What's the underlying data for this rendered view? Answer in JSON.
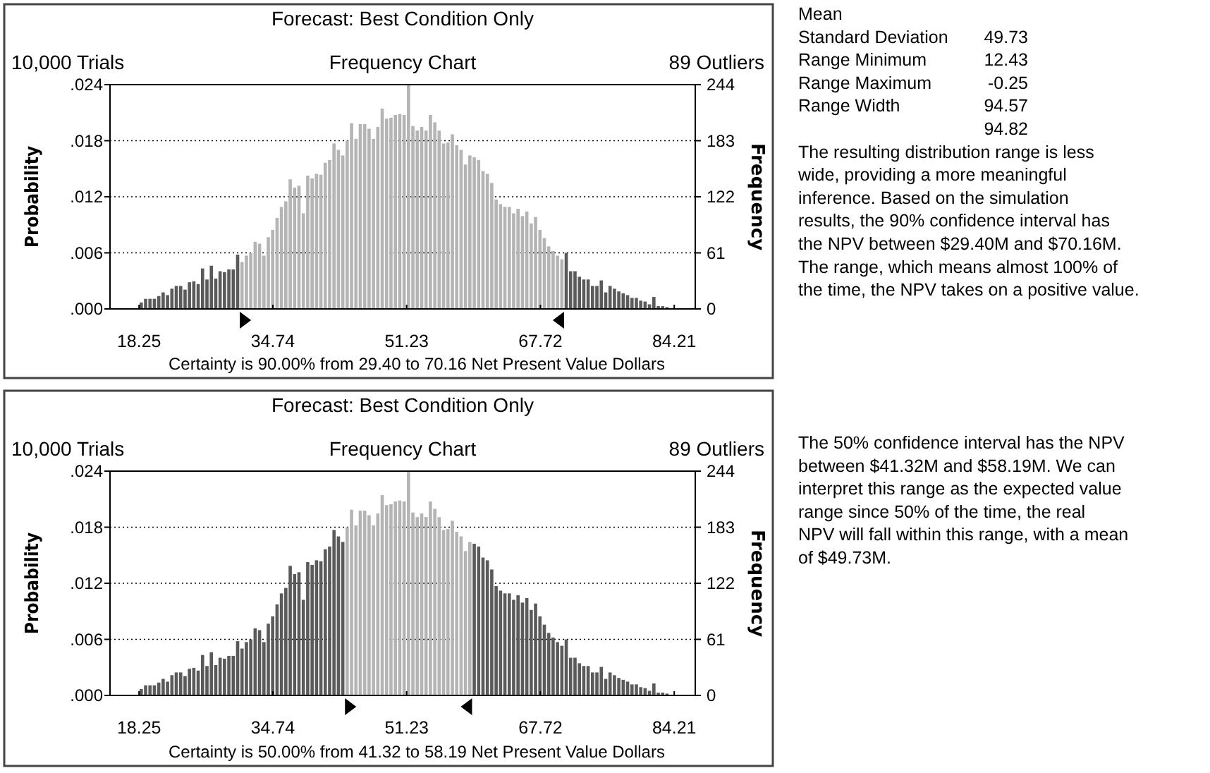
{
  "chart_data": [
    {
      "type": "histogram",
      "title": "Forecast: Best Condition Only",
      "subtitle": "Frequency Chart",
      "ylabel": "Probability",
      "y2label": "Frequency",
      "annotations": [
        "10,000 Trials",
        "89 Outliers",
        "Certainty is 90.00% from 29.40 to 70.16 Net Present Value Dollars"
      ],
      "xlim": [
        14.67,
        86.8
      ],
      "xticks": [
        18.25,
        34.74,
        51.23,
        67.72,
        84.21
      ],
      "ylim": [
        0,
        0.0244
      ],
      "yticks": [
        {
          "value": 0,
          "label": ".000"
        },
        {
          "value": 0.0061,
          "label": ".006"
        },
        {
          "value": 0.0122,
          "label": ".012"
        },
        {
          "value": 0.0183,
          "label": ".018"
        },
        {
          "value": 0.0244,
          "label": ".024"
        }
      ],
      "y2lim": [
        0,
        244
      ],
      "y2ticks": [
        0,
        61,
        122,
        183,
        244
      ],
      "grid": "y",
      "bins": [
        18.25,
        18.79,
        19.33,
        19.87,
        20.41,
        20.95,
        21.49,
        22.03,
        22.57,
        23.11,
        23.65,
        24.19,
        24.73,
        25.27,
        25.81,
        26.35,
        26.89,
        27.43,
        27.97,
        28.51,
        29.05,
        29.59,
        30.13,
        30.67,
        31.21,
        31.75,
        32.29,
        32.83,
        33.37,
        33.91,
        34.45,
        34.99,
        35.53,
        36.07,
        36.61,
        37.15,
        37.69,
        38.23,
        38.77,
        39.31,
        39.85,
        40.39,
        40.93,
        41.47,
        42.01,
        42.55,
        43.09,
        43.63,
        44.17,
        44.71,
        45.25,
        45.79,
        46.33,
        46.87,
        47.41,
        47.95,
        48.49,
        49.03,
        49.57,
        50.11,
        50.65,
        51.19,
        51.73,
        52.27,
        52.81,
        53.35,
        53.89,
        54.43,
        54.97,
        55.51,
        56.05,
        56.59,
        57.13,
        57.67,
        58.21,
        58.75,
        59.29,
        59.83,
        60.37,
        60.91,
        61.45,
        61.99,
        62.53,
        63.07,
        63.61,
        64.15,
        64.69,
        65.23,
        65.77,
        66.31,
        66.85,
        67.39,
        67.93,
        68.47,
        69.01,
        69.55,
        70.09,
        70.63,
        71.17,
        71.71,
        72.25,
        72.79,
        73.33,
        73.87,
        74.41,
        74.95,
        75.49,
        76.03,
        76.57,
        77.11,
        77.65,
        78.19,
        78.73,
        79.27,
        79.81,
        80.35,
        80.89,
        81.43,
        81.97,
        82.51,
        83.05,
        83.59
      ],
      "series": [
        {
          "axis": "y2",
          "values": [
            7,
            11,
            11,
            11,
            14,
            18,
            15,
            22,
            25,
            25,
            21,
            29,
            30,
            27,
            44,
            32,
            47,
            33,
            41,
            40,
            43,
            43,
            59,
            51,
            58,
            61,
            73,
            71,
            58,
            78,
            86,
            99,
            111,
            117,
            141,
            132,
            134,
            104,
            145,
            142,
            147,
            146,
            159,
            162,
            180,
            173,
            167,
            183,
            202,
            185,
            201,
            201,
            196,
            185,
            198,
            218,
            207,
            208,
            211,
            212,
            211,
            244,
            199,
            194,
            198,
            194,
            211,
            203,
            194,
            180,
            181,
            190,
            178,
            173,
            157,
            167,
            165,
            162,
            150,
            147,
            137,
            119,
            114,
            111,
            111,
            104,
            109,
            101,
            106,
            93,
            100,
            86,
            77,
            68,
            63,
            58,
            54,
            61,
            41,
            41,
            35,
            32,
            32,
            25,
            25,
            31,
            18,
            25,
            22,
            19,
            17,
            15,
            12,
            12,
            9,
            8,
            5,
            13,
            3,
            3,
            2
          ],
          "colors": [
            "#5a5a5a",
            "#5a5a5a",
            "#5a5a5a",
            "#5a5a5a",
            "#5a5a5a",
            "#5a5a5a",
            "#5a5a5a",
            "#5a5a5a",
            "#5a5a5a",
            "#5a5a5a",
            "#5a5a5a",
            "#5a5a5a",
            "#5a5a5a",
            "#5a5a5a",
            "#5a5a5a",
            "#5a5a5a",
            "#5a5a5a",
            "#5a5a5a",
            "#5a5a5a",
            "#5a5a5a",
            "#5a5a5a",
            "#5a5a5a",
            "#5a5a5a",
            "#b4b4b4",
            "#b4b4b4",
            "#b4b4b4",
            "#b4b4b4",
            "#b4b4b4",
            "#b4b4b4",
            "#b4b4b4",
            "#b4b4b4",
            "#b4b4b4",
            "#b4b4b4",
            "#b4b4b4",
            "#b4b4b4",
            "#b4b4b4",
            "#b4b4b4",
            "#b4b4b4",
            "#b4b4b4",
            "#b4b4b4",
            "#b4b4b4",
            "#b4b4b4",
            "#b4b4b4",
            "#b4b4b4",
            "#b4b4b4",
            "#b4b4b4",
            "#b4b4b4",
            "#b4b4b4",
            "#b4b4b4",
            "#b4b4b4",
            "#b4b4b4",
            "#b4b4b4",
            "#b4b4b4",
            "#b4b4b4",
            "#b4b4b4",
            "#b4b4b4",
            "#b4b4b4",
            "#b4b4b4",
            "#b4b4b4",
            "#b4b4b4",
            "#b4b4b4",
            "#b4b4b4",
            "#b4b4b4",
            "#b4b4b4",
            "#b4b4b4",
            "#b4b4b4",
            "#b4b4b4",
            "#b4b4b4",
            "#b4b4b4",
            "#b4b4b4",
            "#b4b4b4",
            "#b4b4b4",
            "#b4b4b4",
            "#b4b4b4",
            "#b4b4b4",
            "#b4b4b4",
            "#b4b4b4",
            "#b4b4b4",
            "#b4b4b4",
            "#b4b4b4",
            "#b4b4b4",
            "#b4b4b4",
            "#b4b4b4",
            "#b4b4b4",
            "#b4b4b4",
            "#b4b4b4",
            "#b4b4b4",
            "#b4b4b4",
            "#b4b4b4",
            "#b4b4b4",
            "#b4b4b4",
            "#b4b4b4",
            "#b4b4b4",
            "#b4b4b4",
            "#b4b4b4",
            "#b4b4b4",
            "#b4b4b4",
            "#5a5a5a",
            "#5a5a5a",
            "#5a5a5a",
            "#5a5a5a",
            "#5a5a5a",
            "#5a5a5a",
            "#5a5a5a",
            "#5a5a5a",
            "#5a5a5a",
            "#5a5a5a",
            "#5a5a5a",
            "#5a5a5a",
            "#5a5a5a",
            "#5a5a5a",
            "#5a5a5a",
            "#5a5a5a",
            "#5a5a5a",
            "#5a5a5a",
            "#5a5a5a",
            "#5a5a5a",
            "#5a5a5a",
            "#5a5a5a",
            "#5a5a5a",
            "#5a5a5a"
          ]
        }
      ]
    },
    {
      "type": "histogram",
      "title": "Forecast: Best Condition Only",
      "subtitle": "Frequency Chart",
      "ylabel": "Probability",
      "y2label": "Frequency",
      "annotations": [
        "10,000 Trials",
        "89 Outliers",
        "Certainty is 50.00% from 41.32 to 58.19 Net Present Value Dollars"
      ],
      "xlim": [
        14.67,
        86.8
      ],
      "xticks": [
        18.25,
        34.74,
        51.23,
        67.72,
        84.21
      ],
      "ylim": [
        0,
        0.0244
      ],
      "yticks": [
        {
          "value": 0,
          "label": ".000"
        },
        {
          "value": 0.0061,
          "label": ".006"
        },
        {
          "value": 0.0122,
          "label": ".012"
        },
        {
          "value": 0.0183,
          "label": ".018"
        },
        {
          "value": 0.0244,
          "label": ".024"
        }
      ],
      "y2lim": [
        0,
        244
      ],
      "y2ticks": [
        0,
        61,
        122,
        183,
        244
      ],
      "grid": "y",
      "bins": [
        18.25,
        18.79,
        19.33,
        19.87,
        20.41,
        20.95,
        21.49,
        22.03,
        22.57,
        23.11,
        23.65,
        24.19,
        24.73,
        25.27,
        25.81,
        26.35,
        26.89,
        27.43,
        27.97,
        28.51,
        29.05,
        29.59,
        30.13,
        30.67,
        31.21,
        31.75,
        32.29,
        32.83,
        33.37,
        33.91,
        34.45,
        34.99,
        35.53,
        36.07,
        36.61,
        37.15,
        37.69,
        38.23,
        38.77,
        39.31,
        39.85,
        40.39,
        40.93,
        41.47,
        42.01,
        42.55,
        43.09,
        43.63,
        44.17,
        44.71,
        45.25,
        45.79,
        46.33,
        46.87,
        47.41,
        47.95,
        48.49,
        49.03,
        49.57,
        50.11,
        50.65,
        51.19,
        51.73,
        52.27,
        52.81,
        53.35,
        53.89,
        54.43,
        54.97,
        55.51,
        56.05,
        56.59,
        57.13,
        57.67,
        58.21,
        58.75,
        59.29,
        59.83,
        60.37,
        60.91,
        61.45,
        61.99,
        62.53,
        63.07,
        63.61,
        64.15,
        64.69,
        65.23,
        65.77,
        66.31,
        66.85,
        67.39,
        67.93,
        68.47,
        69.01,
        69.55,
        70.09,
        70.63,
        71.17,
        71.71,
        72.25,
        72.79,
        73.33,
        73.87,
        74.41,
        74.95,
        75.49,
        76.03,
        76.57,
        77.11,
        77.65,
        78.19,
        78.73,
        79.27,
        79.81,
        80.35,
        80.89,
        81.43,
        81.97,
        82.51,
        83.05,
        83.59
      ],
      "series": [
        {
          "axis": "y2",
          "values": [
            7,
            11,
            11,
            11,
            14,
            18,
            15,
            22,
            25,
            25,
            21,
            29,
            30,
            27,
            44,
            32,
            47,
            33,
            41,
            40,
            43,
            43,
            59,
            51,
            58,
            61,
            73,
            71,
            58,
            78,
            86,
            99,
            111,
            117,
            141,
            132,
            134,
            104,
            145,
            142,
            147,
            146,
            159,
            162,
            180,
            173,
            167,
            183,
            202,
            185,
            201,
            201,
            196,
            185,
            198,
            218,
            207,
            208,
            211,
            212,
            211,
            244,
            199,
            194,
            198,
            194,
            211,
            203,
            194,
            180,
            181,
            190,
            178,
            173,
            157,
            167,
            165,
            162,
            150,
            147,
            137,
            119,
            114,
            111,
            111,
            104,
            109,
            101,
            106,
            93,
            100,
            86,
            77,
            68,
            63,
            58,
            54,
            61,
            41,
            41,
            35,
            32,
            32,
            25,
            25,
            31,
            18,
            25,
            22,
            19,
            17,
            15,
            12,
            12,
            9,
            8,
            5,
            13,
            3,
            3,
            2
          ],
          "colors": [
            "#5a5a5a",
            "#5a5a5a",
            "#5a5a5a",
            "#5a5a5a",
            "#5a5a5a",
            "#5a5a5a",
            "#5a5a5a",
            "#5a5a5a",
            "#5a5a5a",
            "#5a5a5a",
            "#5a5a5a",
            "#5a5a5a",
            "#5a5a5a",
            "#5a5a5a",
            "#5a5a5a",
            "#5a5a5a",
            "#5a5a5a",
            "#5a5a5a",
            "#5a5a5a",
            "#5a5a5a",
            "#5a5a5a",
            "#5a5a5a",
            "#5a5a5a",
            "#5a5a5a",
            "#5a5a5a",
            "#5a5a5a",
            "#5a5a5a",
            "#5a5a5a",
            "#5a5a5a",
            "#5a5a5a",
            "#5a5a5a",
            "#5a5a5a",
            "#5a5a5a",
            "#5a5a5a",
            "#5a5a5a",
            "#5a5a5a",
            "#5a5a5a",
            "#5a5a5a",
            "#5a5a5a",
            "#5a5a5a",
            "#5a5a5a",
            "#5a5a5a",
            "#5a5a5a",
            "#5a5a5a",
            "#5a5a5a",
            "#5a5a5a",
            "#5a5a5a",
            "#b4b4b4",
            "#b4b4b4",
            "#b4b4b4",
            "#b4b4b4",
            "#b4b4b4",
            "#b4b4b4",
            "#b4b4b4",
            "#b4b4b4",
            "#b4b4b4",
            "#b4b4b4",
            "#b4b4b4",
            "#b4b4b4",
            "#b4b4b4",
            "#b4b4b4",
            "#b4b4b4",
            "#b4b4b4",
            "#b4b4b4",
            "#b4b4b4",
            "#b4b4b4",
            "#b4b4b4",
            "#b4b4b4",
            "#b4b4b4",
            "#b4b4b4",
            "#b4b4b4",
            "#b4b4b4",
            "#b4b4b4",
            "#b4b4b4",
            "#b4b4b4",
            "#b4b4b4",
            "#5a5a5a",
            "#5a5a5a",
            "#5a5a5a",
            "#5a5a5a",
            "#5a5a5a",
            "#5a5a5a",
            "#5a5a5a",
            "#5a5a5a",
            "#5a5a5a",
            "#5a5a5a",
            "#5a5a5a",
            "#5a5a5a",
            "#5a5a5a",
            "#5a5a5a",
            "#5a5a5a",
            "#5a5a5a",
            "#5a5a5a",
            "#5a5a5a",
            "#5a5a5a",
            "#5a5a5a",
            "#5a5a5a",
            "#5a5a5a",
            "#5a5a5a",
            "#5a5a5a",
            "#5a5a5a",
            "#5a5a5a",
            "#5a5a5a",
            "#5a5a5a",
            "#5a5a5a",
            "#5a5a5a",
            "#5a5a5a",
            "#5a5a5a",
            "#5a5a5a",
            "#5a5a5a",
            "#5a5a5a",
            "#5a5a5a",
            "#5a5a5a",
            "#5a5a5a",
            "#5a5a5a",
            "#5a5a5a",
            "#5a5a5a",
            "#5a5a5a",
            "#5a5a5a",
            "#5a5a5a",
            "#5a5a5a"
          ]
        }
      ]
    },
    {
      "type": "other",
      "annotations": [
        "Mean",
        "Standard Deviation",
        "Range Minimum",
        "Range Maximum",
        "Range Width",
        "49.73",
        "12.43",
        "-0.25",
        "94.57",
        "94.82",
        "The resulting distribution range is less\nwide, providing a more meaningful\ninference. Based on the simulation\nresults, the 90% confidence interval has\nthe NPV between $29.40M and $70.16M.\nThe range, which means almost 100% of\nthe time, the NPV takes on a positive value."
      ]
    },
    {
      "type": "other",
      "annotations": [
        "The 50% confidence interval has the NPV\nbetween $41.32M and $58.19M. We can\ninterpret this range as the expected value\nrange since 50% of the time, the real\nNPV will fall within this range, with a mean\nof $49.73M."
      ]
    }
  ]
}
